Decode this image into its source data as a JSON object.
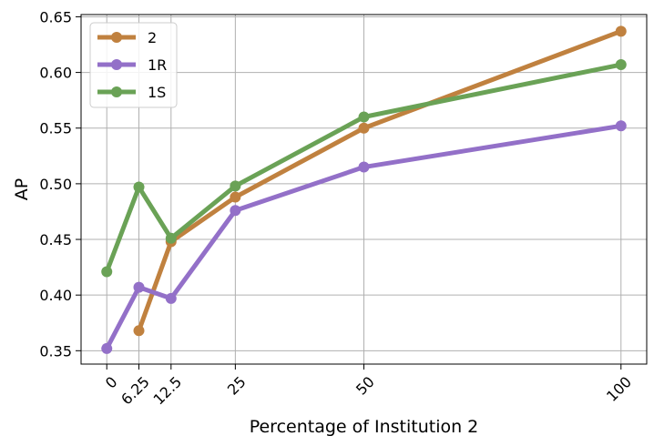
{
  "chart_data": {
    "type": "line",
    "title": "",
    "xlabel": "Percentage of Institution 2",
    "ylabel": "AP",
    "x": [
      0,
      6.25,
      12.5,
      25,
      50,
      100
    ],
    "x_tick_labels": [
      "0",
      "6.25",
      "12.5",
      "25",
      "50",
      "100"
    ],
    "xlim": [
      -5,
      105
    ],
    "ylim": [
      0.338,
      0.652
    ],
    "y_ticks": [
      0.35,
      0.4,
      0.45,
      0.5,
      0.55,
      0.6,
      0.65
    ],
    "y_tick_labels": [
      "0.35",
      "0.40",
      "0.45",
      "0.50",
      "0.55",
      "0.60",
      "0.65"
    ],
    "grid": true,
    "legend_position": "top-left",
    "series": [
      {
        "name": "2",
        "color": "#c0813f",
        "x": [
          6.25,
          12.5,
          25,
          50,
          100
        ],
        "values": [
          0.368,
          0.448,
          0.488,
          0.55,
          0.637
        ]
      },
      {
        "name": "1R",
        "color": "#9370c8",
        "x": [
          0,
          6.25,
          12.5,
          25,
          50,
          100
        ],
        "values": [
          0.352,
          0.407,
          0.397,
          0.476,
          0.515,
          0.552
        ]
      },
      {
        "name": "1S",
        "color": "#6aa256",
        "x": [
          0,
          6.25,
          12.5,
          25,
          50,
          100
        ],
        "values": [
          0.421,
          0.497,
          0.451,
          0.498,
          0.56,
          0.607
        ]
      }
    ]
  }
}
